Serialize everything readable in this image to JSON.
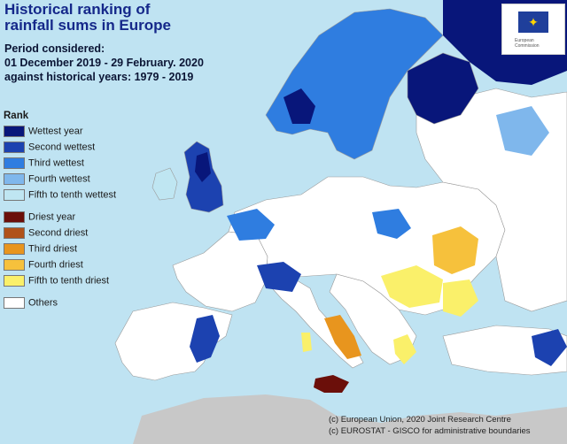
{
  "map": {
    "title_line1": "Historical ranking of",
    "title_line2": "rainfall sums in Europe",
    "period_line1": "Period considered:",
    "period_line2": "01 December 2019 - 29 February. 2020",
    "period_line3": "against historical years: 1979 - 2019"
  },
  "legend": {
    "title": "Rank",
    "items": [
      {
        "label": "Wettest year",
        "color": "#08167a"
      },
      {
        "label": "Second wettest",
        "color": "#1c42b0"
      },
      {
        "label": "Third wettest",
        "color": "#2f7de0"
      },
      {
        "label": "Fourth wettest",
        "color": "#7fb7ec"
      },
      {
        "label": "Fifth to tenth wettest",
        "color": "#bfe6f2"
      },
      {
        "label": "Driest year",
        "color": "#6b0f0a"
      },
      {
        "label": "Second driest",
        "color": "#b0521a"
      },
      {
        "label": "Third driest",
        "color": "#e8951e"
      },
      {
        "label": "Fourth driest",
        "color": "#f6c13c"
      },
      {
        "label": "Fifth to tenth driest",
        "color": "#faf06a"
      },
      {
        "label": "Others",
        "color": "#ffffff"
      }
    ]
  },
  "credits": {
    "line1": "(c) European Union, 2020 Joint Research Centre",
    "line2": "(c) EUROSTAT - GISCO for administrative boundaries"
  },
  "logo": {
    "icon": "eu-flag-icon",
    "caption": "European Commission"
  },
  "colors": {
    "sea": "#bfe3f2",
    "land_other": "#ffffff",
    "outside": "#c8c8c8",
    "border": "#9a9a9a"
  }
}
